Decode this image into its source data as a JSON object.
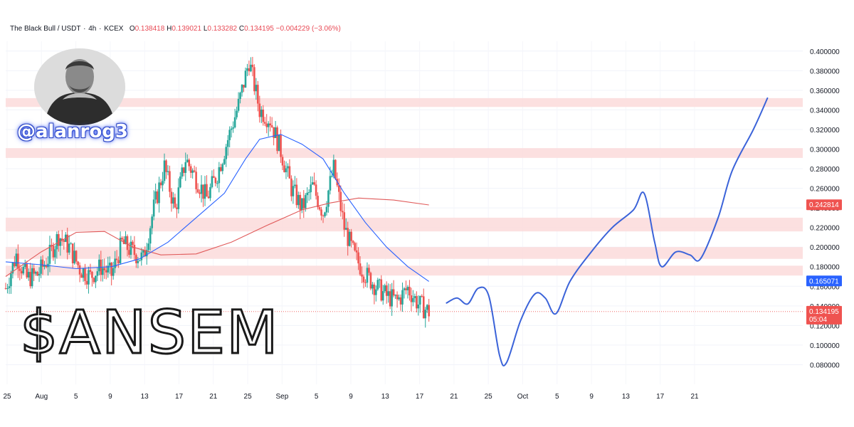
{
  "header": {
    "symbol": "The Black Bull / USDT",
    "interval": "4h",
    "exchange": "KCEX",
    "open_label": "O",
    "open": "0.138418",
    "high_label": "H",
    "high": "0.139021",
    "low_label": "L",
    "low": "0.133282",
    "close_label": "C",
    "close": "0.134195",
    "change": "−0.004229 (−3.06%)"
  },
  "overlay": {
    "handle": "@alanrog3",
    "ticker": "$ANSEM",
    "avatar_icon": "person-portrait-icon"
  },
  "price_badges": {
    "ma_slow": "0.242814",
    "ma_fast": "0.165071",
    "last": "0.134195",
    "countdown": "05:04"
  },
  "colors": {
    "up": "#26a69a",
    "down": "#ef5350",
    "zone": "#fbdada",
    "ma_fast": "#2962ff",
    "ma_slow": "#e05a5a",
    "projection": "#3b63d9"
  },
  "chart_data": {
    "type": "candlestick",
    "title": "The Black Bull / USDT · 4h · KCEX",
    "ylim": [
      0.06,
      0.41
    ],
    "y_ticks": [
      "0.400000",
      "0.380000",
      "0.360000",
      "0.340000",
      "0.320000",
      "0.300000",
      "0.280000",
      "0.260000",
      "0.240000",
      "0.220000",
      "0.200000",
      "0.180000",
      "0.160000",
      "0.140000",
      "0.120000",
      "0.100000",
      "0.080000"
    ],
    "x_ticks": [
      "25",
      "Aug",
      "5",
      "9",
      "13",
      "17",
      "21",
      "25",
      "Sep",
      "5",
      "9",
      "13",
      "17",
      "21",
      "25",
      "Oct",
      "5",
      "9",
      "13",
      "17",
      "21"
    ],
    "zones": [
      {
        "low": 0.343,
        "high": 0.352
      },
      {
        "low": 0.291,
        "high": 0.301
      },
      {
        "low": 0.216,
        "high": 0.23
      },
      {
        "low": 0.188,
        "high": 0.2
      },
      {
        "low": 0.171,
        "high": 0.181
      }
    ],
    "price_path": [
      [
        0,
        0.158
      ],
      [
        3,
        0.192
      ],
      [
        6,
        0.168
      ],
      [
        9,
        0.172
      ],
      [
        12,
        0.188
      ],
      [
        15,
        0.212
      ],
      [
        18,
        0.2
      ],
      [
        21,
        0.178
      ],
      [
        24,
        0.17
      ],
      [
        27,
        0.18
      ],
      [
        30,
        0.172
      ],
      [
        33,
        0.204
      ],
      [
        36,
        0.195
      ],
      [
        39,
        0.188
      ],
      [
        42,
        0.24
      ],
      [
        45,
        0.282
      ],
      [
        48,
        0.238
      ],
      [
        51,
        0.29
      ],
      [
        54,
        0.27
      ],
      [
        57,
        0.25
      ],
      [
        60,
        0.275
      ],
      [
        63,
        0.31
      ],
      [
        66,
        0.345
      ],
      [
        69,
        0.39
      ],
      [
        72,
        0.34
      ],
      [
        75,
        0.33
      ],
      [
        78,
        0.298
      ],
      [
        81,
        0.26
      ],
      [
        84,
        0.24
      ],
      [
        87,
        0.262
      ],
      [
        90,
        0.235
      ],
      [
        93,
        0.28
      ],
      [
        96,
        0.22
      ],
      [
        99,
        0.19
      ],
      [
        102,
        0.172
      ],
      [
        105,
        0.16
      ],
      [
        108,
        0.15
      ],
      [
        111,
        0.145
      ],
      [
        114,
        0.158
      ],
      [
        117,
        0.142
      ],
      [
        120,
        0.134
      ]
    ],
    "ma_fast": [
      [
        0,
        0.185
      ],
      [
        10,
        0.182
      ],
      [
        20,
        0.178
      ],
      [
        30,
        0.18
      ],
      [
        38,
        0.188
      ],
      [
        46,
        0.205
      ],
      [
        54,
        0.23
      ],
      [
        62,
        0.255
      ],
      [
        68,
        0.29
      ],
      [
        72,
        0.31
      ],
      [
        78,
        0.315
      ],
      [
        84,
        0.305
      ],
      [
        90,
        0.29
      ],
      [
        96,
        0.255
      ],
      [
        102,
        0.225
      ],
      [
        108,
        0.2
      ],
      [
        114,
        0.18
      ],
      [
        120,
        0.165
      ]
    ],
    "ma_slow": [
      [
        0,
        0.17
      ],
      [
        10,
        0.195
      ],
      [
        20,
        0.215
      ],
      [
        28,
        0.216
      ],
      [
        36,
        0.2
      ],
      [
        44,
        0.192
      ],
      [
        54,
        0.193
      ],
      [
        64,
        0.205
      ],
      [
        74,
        0.222
      ],
      [
        84,
        0.238
      ],
      [
        92,
        0.245
      ],
      [
        100,
        0.25
      ],
      [
        110,
        0.248
      ],
      [
        120,
        0.243
      ]
    ],
    "projection": [
      [
        125,
        0.143
      ],
      [
        128,
        0.148
      ],
      [
        131,
        0.142
      ],
      [
        134,
        0.158
      ],
      [
        137,
        0.15
      ],
      [
        140,
        0.09
      ],
      [
        142,
        0.082
      ],
      [
        146,
        0.125
      ],
      [
        150,
        0.152
      ],
      [
        153,
        0.148
      ],
      [
        156,
        0.132
      ],
      [
        160,
        0.165
      ],
      [
        166,
        0.195
      ],
      [
        172,
        0.22
      ],
      [
        178,
        0.238
      ],
      [
        181,
        0.255
      ],
      [
        184,
        0.205
      ],
      [
        186,
        0.18
      ],
      [
        190,
        0.195
      ],
      [
        194,
        0.192
      ],
      [
        197,
        0.188
      ],
      [
        202,
        0.23
      ],
      [
        206,
        0.278
      ],
      [
        212,
        0.32
      ],
      [
        216,
        0.352
      ]
    ],
    "last_price": 0.134195,
    "last_price_badge": 0.134195,
    "ma_slow_badge": 0.242814,
    "ma_fast_badge": 0.165071
  }
}
